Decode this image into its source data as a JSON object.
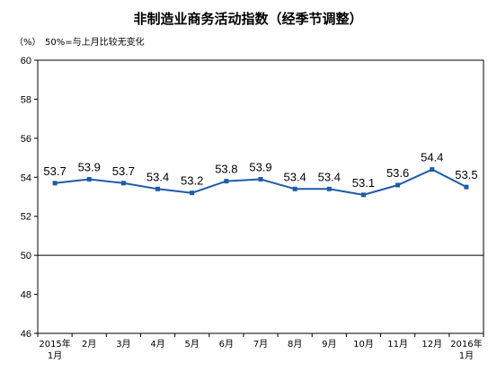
{
  "chart_data": {
    "type": "line",
    "title": "非制造业商务活动指数（经季节调整）",
    "unit_label": "（%）",
    "note": "50%=与上月比较无变化",
    "ylim": [
      46,
      60
    ],
    "yticks": [
      46,
      48,
      50,
      52,
      54,
      56,
      58,
      60
    ],
    "reference_line": 50,
    "categories": [
      [
        "2015年",
        "1月"
      ],
      [
        "2月"
      ],
      [
        "3月"
      ],
      [
        "4月"
      ],
      [
        "5月"
      ],
      [
        "6月"
      ],
      [
        "7月"
      ],
      [
        "8月"
      ],
      [
        "9月"
      ],
      [
        "10月"
      ],
      [
        "11月"
      ],
      [
        "12月"
      ],
      [
        "2016年",
        "1月"
      ]
    ],
    "series": [
      {
        "values": [
          53.7,
          53.9,
          53.7,
          53.4,
          53.2,
          53.8,
          53.9,
          53.4,
          53.4,
          53.1,
          53.6,
          54.4,
          53.5
        ]
      }
    ],
    "data_labels": [
      "53.7",
      "53.9",
      "53.7",
      "53.4",
      "53.2",
      "53.8",
      "53.9",
      "53.4",
      "53.4",
      "53.1",
      "53.6",
      "54.4",
      "53.5"
    ],
    "colors": {
      "line": "#1f5aa6",
      "marker": "#1f5aa6",
      "axis": "#000000",
      "reference": "#000000"
    }
  }
}
